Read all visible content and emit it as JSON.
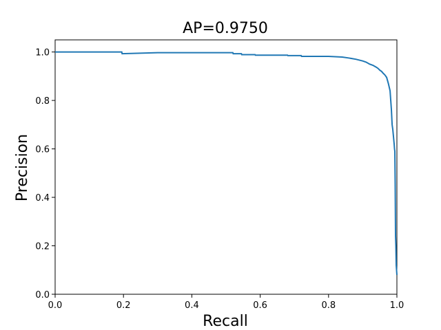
{
  "chart_data": {
    "type": "line",
    "title": "AP=0.9750",
    "xlabel": "Recall",
    "ylabel": "Precision",
    "xlim": [
      0.0,
      1.0
    ],
    "ylim": [
      0.0,
      1.05
    ],
    "xticks": [
      "0.0",
      "0.2",
      "0.4",
      "0.6",
      "0.8",
      "1.0"
    ],
    "yticks": [
      "0.0",
      "0.2",
      "0.4",
      "0.6",
      "0.8",
      "1.0"
    ],
    "grid": false,
    "legend": "none",
    "series": [
      {
        "color": "#1f77b4",
        "x": [
          0.0,
          0.195,
          0.196,
          0.3,
          0.52,
          0.521,
          0.545,
          0.546,
          0.585,
          0.586,
          0.68,
          0.681,
          0.72,
          0.721,
          0.8,
          0.84,
          0.86,
          0.88,
          0.9,
          0.91,
          0.92,
          0.93,
          0.94,
          0.945,
          0.95,
          0.955,
          0.96,
          0.965,
          0.97,
          0.975,
          0.98,
          0.982,
          0.984,
          0.986,
          0.988,
          0.99,
          0.992,
          0.993,
          0.994,
          0.995,
          0.996,
          0.997,
          0.998,
          0.999,
          1.0
        ],
        "y": [
          1.0,
          1.0,
          0.993,
          0.997,
          0.997,
          0.993,
          0.993,
          0.989,
          0.989,
          0.987,
          0.987,
          0.985,
          0.985,
          0.982,
          0.982,
          0.979,
          0.975,
          0.97,
          0.963,
          0.958,
          0.95,
          0.945,
          0.937,
          0.932,
          0.925,
          0.92,
          0.912,
          0.905,
          0.895,
          0.87,
          0.84,
          0.8,
          0.76,
          0.7,
          0.68,
          0.65,
          0.62,
          0.6,
          0.59,
          0.45,
          0.24,
          0.2,
          0.12,
          0.1,
          0.08
        ]
      }
    ]
  }
}
